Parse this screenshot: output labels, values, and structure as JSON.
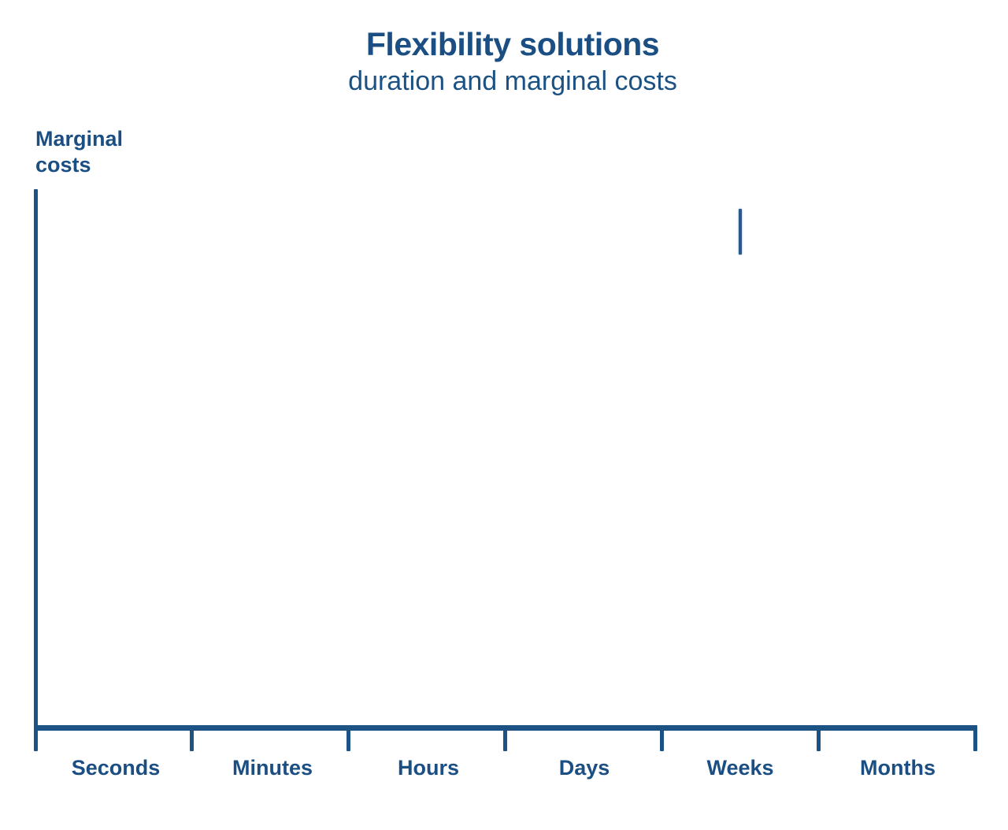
{
  "header": {
    "title": "Flexibility solutions",
    "subtitle": "duration and marginal costs"
  },
  "colors": {
    "primary_text": "#1b4e82",
    "axis_line": "#1d5285",
    "background": "#ffffff"
  },
  "chart_data": {
    "type": "line",
    "title": "Flexibility solutions",
    "subtitle": "duration and marginal costs",
    "xlabel": "",
    "ylabel": "Marginal costs",
    "categories": [
      "Seconds",
      "Minutes",
      "Hours",
      "Days",
      "Weeks",
      "Months"
    ],
    "series": [],
    "grid": false,
    "legend": false,
    "axis_ticks": "category boundaries, no numeric scale shown",
    "annotations": [
      {
        "shape": "vertical-line-segment",
        "x_category": "Weeks",
        "position": "upper area, above Weeks interval",
        "description": "short isolated vertical stroke (partially drawn slide element)"
      }
    ]
  }
}
